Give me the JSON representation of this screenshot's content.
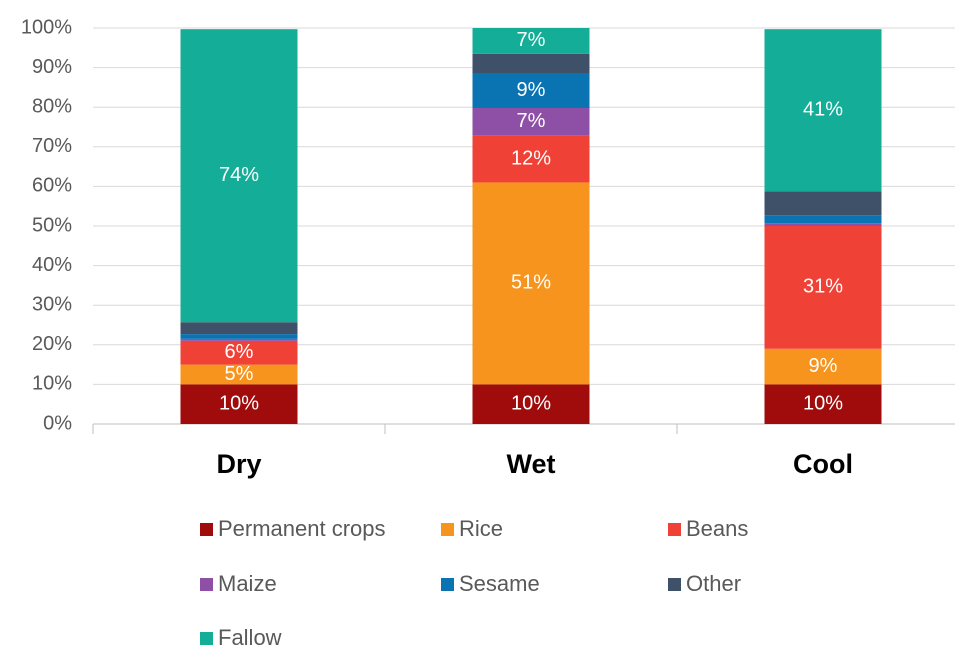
{
  "chart_data": {
    "type": "stacked_bar",
    "categories": [
      "Dry",
      "Wet",
      "Cool"
    ],
    "series": [
      {
        "name": "Permanent crops",
        "color": "#a00b0b",
        "values": [
          10,
          10,
          10
        ],
        "value_labels": [
          "10%",
          "10%",
          "10%"
        ]
      },
      {
        "name": "Rice",
        "color": "#f7941d",
        "values": [
          5,
          51,
          9
        ],
        "value_labels": [
          "5%",
          "51%",
          "9%"
        ]
      },
      {
        "name": "Beans",
        "color": "#ef4136",
        "values": [
          6,
          11.8,
          31
        ],
        "value_labels": [
          "6%",
          "12%",
          "31%"
        ]
      },
      {
        "name": "Maize",
        "color": "#8e4fa6",
        "values": [
          0.5,
          7,
          0.7
        ],
        "value_labels": [
          null,
          "7%",
          null
        ]
      },
      {
        "name": "Sesame",
        "color": "#0a74b3",
        "values": [
          1.2,
          8.7,
          2
        ],
        "value_labels": [
          null,
          "9%",
          null
        ]
      },
      {
        "name": "Other",
        "color": "#3f5168",
        "values": [
          3,
          5,
          6
        ],
        "value_labels": [
          null,
          null,
          null
        ]
      },
      {
        "name": "Fallow",
        "color": "#14ad97",
        "values": [
          74,
          6.5,
          41
        ],
        "value_labels": [
          "74%",
          "7%",
          "41%"
        ]
      }
    ],
    "ylim": [
      0,
      100
    ],
    "yticks": [
      {
        "value": 0,
        "label": "0%"
      },
      {
        "value": 10,
        "label": "10%"
      },
      {
        "value": 20,
        "label": "20%"
      },
      {
        "value": 30,
        "label": "30%"
      },
      {
        "value": 40,
        "label": "40%"
      },
      {
        "value": 50,
        "label": "50%"
      },
      {
        "value": 60,
        "label": "60%"
      },
      {
        "value": 70,
        "label": "70%"
      },
      {
        "value": 80,
        "label": "80%"
      },
      {
        "value": 90,
        "label": "90%"
      },
      {
        "value": 100,
        "label": "100%"
      }
    ],
    "grid": true,
    "legend": "bottom"
  }
}
